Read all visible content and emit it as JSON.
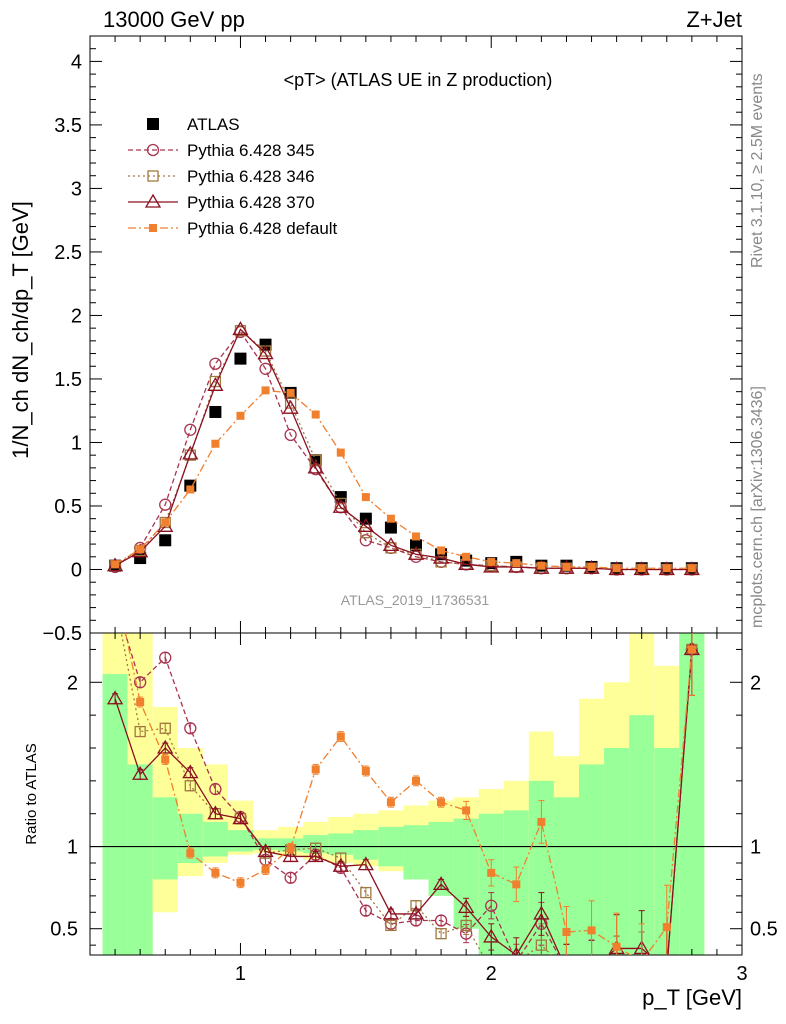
{
  "header": {
    "left": "13000 GeV pp",
    "right": "Z+Jet",
    "side_top": "Rivet 3.1.10, ≥ 2.5M events",
    "side_bottom": "mcplots.cern.ch [arXiv:1306.3436]",
    "analysis_id": "ATLAS_2019_I1736531"
  },
  "chart_data": [
    {
      "type": "line",
      "title": "<pT> (ATLAS UE in Z production)",
      "xlabel": "p_T [GeV]",
      "ylabel": "1/N_ch dN_ch/dp_T [GeV]",
      "xlim": [
        0.4,
        3.0
      ],
      "ylim": [
        -0.5,
        4.2
      ],
      "yticks": [
        "−0.5",
        "0",
        "0.5",
        "1",
        "1.5",
        "2",
        "2.5",
        "3",
        "3.5",
        "4"
      ],
      "legend_position": "top-left",
      "x": [
        0.5,
        0.6,
        0.7,
        0.8,
        0.9,
        1.0,
        1.1,
        1.2,
        1.3,
        1.4,
        1.5,
        1.6,
        1.7,
        1.8,
        1.9,
        2.0,
        2.1,
        2.2,
        2.3,
        2.4,
        2.5,
        2.6,
        2.7,
        2.8
      ],
      "series": [
        {
          "name": "ATLAS",
          "marker": "square-filled",
          "color": "#000000",
          "values": [
            0.03,
            0.09,
            0.23,
            0.66,
            1.24,
            1.66,
            1.77,
            1.39,
            0.86,
            0.57,
            0.4,
            0.33,
            0.19,
            0.12,
            0.07,
            0.05,
            0.06,
            0.03,
            0.03,
            0.02,
            0.01,
            0.01,
            0.01,
            0.01
          ]
        },
        {
          "name": "Pythia 6.428 345",
          "marker": "circle-open",
          "dash": "5,3",
          "color": "#a8344f",
          "values": [
            0.02,
            0.17,
            0.51,
            1.1,
            1.62,
            1.87,
            1.58,
            1.06,
            0.79,
            0.49,
            0.23,
            0.17,
            0.1,
            0.06,
            0.04,
            0.03,
            0.02,
            0.01,
            0.01,
            0.01,
            0.0,
            0.0,
            0.0,
            0.0
          ]
        },
        {
          "name": "Pythia 6.428 346",
          "marker": "square-open",
          "dash": "2,3",
          "color": "#a07840",
          "values": [
            0.03,
            0.15,
            0.37,
            0.9,
            1.48,
            1.88,
            1.72,
            1.31,
            0.86,
            0.52,
            0.29,
            0.17,
            0.12,
            0.06,
            0.04,
            0.03,
            0.02,
            0.01,
            0.01,
            0.01,
            0.0,
            0.0,
            0.0,
            0.0
          ]
        },
        {
          "name": "Pythia 6.428 370",
          "marker": "triangle-open",
          "dash": "",
          "color": "#8b1020",
          "values": [
            0.03,
            0.14,
            0.34,
            0.91,
            1.45,
            1.89,
            1.7,
            1.27,
            0.8,
            0.49,
            0.34,
            0.19,
            0.12,
            0.09,
            0.04,
            0.02,
            0.02,
            0.01,
            0.01,
            0.01,
            0.0,
            0.0,
            0.0,
            0.0
          ]
        },
        {
          "name": "Pythia 6.428 default",
          "marker": "square-small-filled",
          "dash": "8,3,2,3",
          "color": "#f07f2e",
          "values": [
            0.04,
            0.16,
            0.37,
            0.63,
            0.99,
            1.21,
            1.41,
            1.39,
            1.22,
            0.92,
            0.57,
            0.4,
            0.26,
            0.15,
            0.1,
            0.06,
            0.05,
            0.03,
            0.02,
            0.02,
            0.01,
            0.01,
            0.01,
            0.01
          ]
        }
      ]
    },
    {
      "type": "line",
      "ylabel": "Ratio to ATLAS",
      "xlabel": "p_T [GeV]",
      "xlim": [
        0.4,
        3.0
      ],
      "ylim": [
        0.34,
        2.3
      ],
      "yticks": [
        "0.5",
        "1",
        "2"
      ],
      "xticks": [
        "1",
        "2",
        "3"
      ],
      "reference": 1,
      "x": [
        0.5,
        0.6,
        0.7,
        0.8,
        0.9,
        1.0,
        1.1,
        1.2,
        1.3,
        1.4,
        1.5,
        1.6,
        1.7,
        1.8,
        1.9,
        2.0,
        2.1,
        2.2,
        2.3,
        2.4,
        2.5,
        2.6,
        2.7,
        2.8
      ],
      "bands": {
        "edges": [
          0.45,
          0.55,
          0.65,
          0.75,
          0.85,
          0.95,
          1.05,
          1.15,
          1.25,
          1.35,
          1.45,
          1.55,
          1.65,
          1.75,
          1.85,
          1.95,
          2.05,
          2.15,
          2.25,
          2.35,
          2.45,
          2.55,
          2.65,
          2.75,
          2.85
        ],
        "yellow_hi": [
          3.0,
          2.3,
          1.85,
          1.6,
          1.5,
          1.28,
          1.1,
          1.12,
          1.15,
          1.18,
          1.2,
          1.22,
          1.25,
          1.28,
          1.3,
          1.35,
          1.4,
          1.7,
          1.55,
          1.9,
          2.0,
          3.0,
          2.1,
          3.0
        ],
        "yellow_lo": [
          0.25,
          0.25,
          0.6,
          0.82,
          0.9,
          0.95,
          0.96,
          0.94,
          0.92,
          0.9,
          0.88,
          0.85,
          0.8,
          0.75,
          0.7,
          0.6,
          0.3,
          0.25,
          0.25,
          0.25,
          0.25,
          0.25,
          0.25,
          0.25
        ],
        "green_hi": [
          2.05,
          1.5,
          1.3,
          1.2,
          1.15,
          1.1,
          1.05,
          1.05,
          1.07,
          1.08,
          1.1,
          1.12,
          1.13,
          1.15,
          1.17,
          1.2,
          1.22,
          1.4,
          1.3,
          1.5,
          1.6,
          1.8,
          1.6,
          3.0
        ],
        "green_lo": [
          0.25,
          0.25,
          0.8,
          0.9,
          0.94,
          0.97,
          0.98,
          0.97,
          0.96,
          0.95,
          0.92,
          0.88,
          0.8,
          0.7,
          0.5,
          0.3,
          0.25,
          0.25,
          0.25,
          0.25,
          0.25,
          0.25,
          0.25,
          0.25
        ]
      },
      "series": [
        {
          "name": "Pythia 6.428 345",
          "values": [
            2.5,
            2.0,
            2.15,
            1.72,
            1.35,
            1.18,
            0.92,
            0.81,
            0.95,
            0.87,
            0.61,
            0.53,
            0.55,
            0.55,
            0.47,
            0.64,
            0.3,
            0.53,
            0.25,
            0.25,
            0.25,
            0.25,
            0.25,
            2.2
          ]
        },
        {
          "name": "Pythia 6.428 346",
          "values": [
            2.5,
            1.7,
            1.72,
            1.37,
            1.2,
            1.17,
            0.96,
            0.98,
            0.99,
            0.93,
            0.72,
            0.52,
            0.64,
            0.47,
            0.52,
            0.25,
            0.3,
            0.4,
            0.25,
            0.25,
            0.25,
            0.25,
            0.25,
            2.2
          ]
        },
        {
          "name": "Pythia 6.428 370",
          "values": [
            1.9,
            1.44,
            1.6,
            1.45,
            1.2,
            1.17,
            0.97,
            0.94,
            0.94,
            0.88,
            0.89,
            0.59,
            0.59,
            0.77,
            0.63,
            0.45,
            0.34,
            0.59,
            0.25,
            0.25,
            0.38,
            0.38,
            0.25,
            2.2
          ]
        },
        {
          "name": "Pythia 6.428 default",
          "values": [
            2.6,
            1.88,
            1.53,
            0.96,
            0.84,
            0.78,
            0.86,
            0.99,
            1.47,
            1.67,
            1.46,
            1.27,
            1.4,
            1.27,
            1.22,
            0.84,
            0.77,
            1.15,
            0.48,
            0.49,
            0.39,
            0.3,
            0.51,
            2.2
          ]
        }
      ]
    }
  ]
}
